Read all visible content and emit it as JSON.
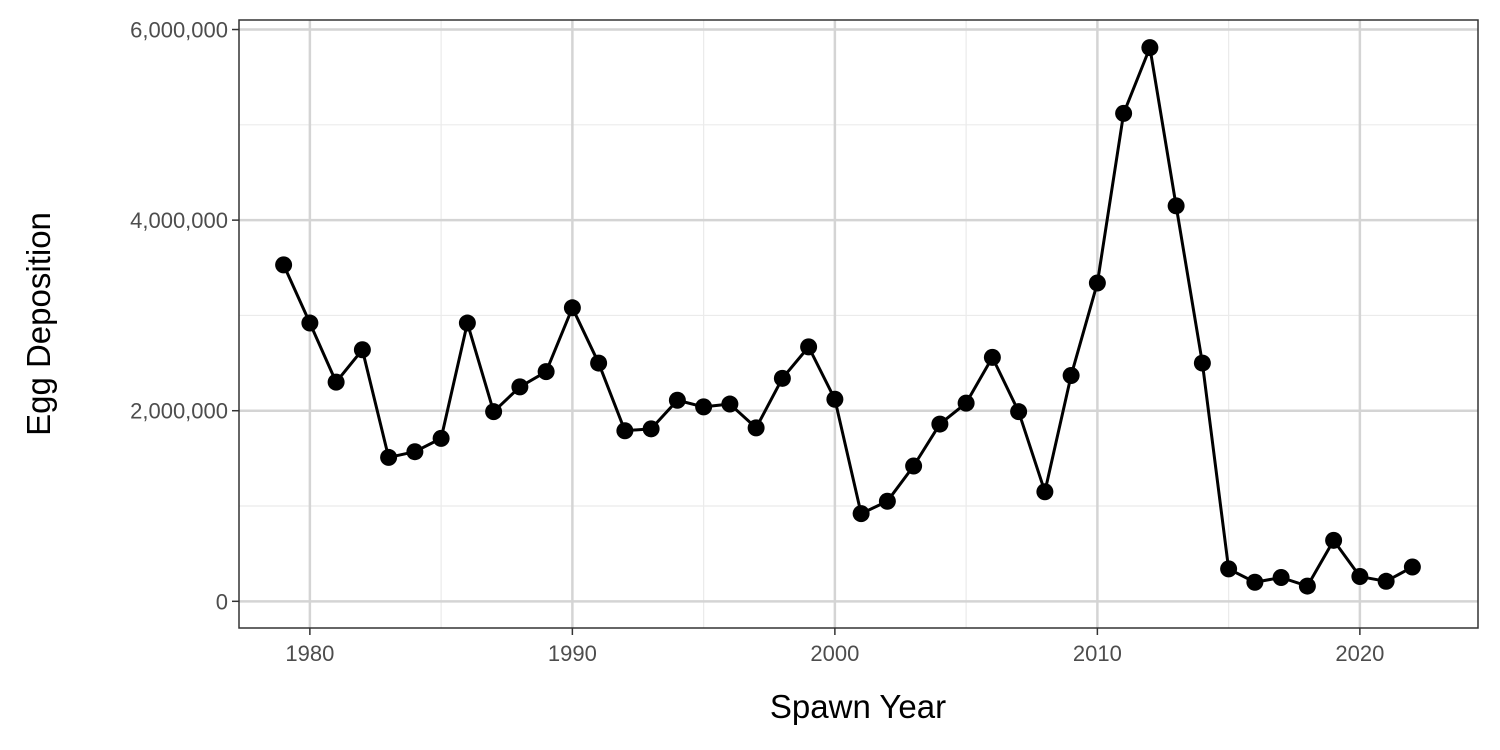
{
  "chart_data": {
    "type": "line",
    "xlabel": "Spawn Year",
    "ylabel": "Egg Deposition",
    "xlim": [
      1977.3,
      2024.5
    ],
    "ylim": [
      -280000,
      6100000
    ],
    "x_ticks": [
      1980,
      1990,
      2000,
      2010,
      2020
    ],
    "x_tick_labels": [
      "1980",
      "1990",
      "2000",
      "2010",
      "2020"
    ],
    "x_minor_ticks": [
      1985,
      1995,
      2005,
      2015
    ],
    "y_ticks": [
      0,
      2000000,
      4000000,
      6000000
    ],
    "y_tick_labels": [
      "0",
      "2,000,000",
      "4,000,000",
      "6,000,000"
    ],
    "y_minor_ticks": [
      1000000,
      3000000,
      5000000
    ],
    "grid": true,
    "series": [
      {
        "x": [
          1979,
          1980,
          1981,
          1982,
          1983,
          1984,
          1985,
          1986,
          1987,
          1988,
          1989,
          1990,
          1991,
          1992,
          1993,
          1994,
          1995,
          1996,
          1997,
          1998,
          1999,
          2000,
          2001,
          2002,
          2003,
          2004,
          2005,
          2006,
          2007,
          2008,
          2009,
          2010,
          2011,
          2012,
          2013,
          2014,
          2015,
          2016,
          2017,
          2018,
          2019,
          2020,
          2021,
          2022
        ],
        "y": [
          3530000,
          2920000,
          2300000,
          2640000,
          1510000,
          1570000,
          1710000,
          2920000,
          1990000,
          2250000,
          2410000,
          3080000,
          2500000,
          1790000,
          1810000,
          2110000,
          2040000,
          2070000,
          1820000,
          2340000,
          2670000,
          2120000,
          920000,
          1050000,
          1420000,
          1860000,
          2080000,
          2560000,
          1990000,
          1150000,
          2370000,
          3340000,
          5120000,
          5810000,
          4150000,
          2500000,
          340000,
          200000,
          250000,
          160000,
          640000,
          260000,
          210000,
          360000
        ],
        "color": "#000000"
      }
    ]
  }
}
